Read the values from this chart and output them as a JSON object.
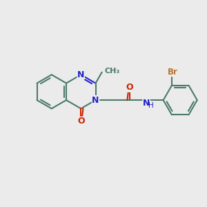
{
  "bg_color": "#ebebeb",
  "bond_color": "#4a7a6a",
  "bond_width": 1.5,
  "font_size_N": 9,
  "font_size_O": 9,
  "font_size_Br": 8.5,
  "font_size_atom": 8,
  "N_color": "#2222cc",
  "O_color": "#cc2200",
  "Br_color": "#b87333",
  "C_color": "#4a7a6a",
  "H_color": "#4a7a6a",
  "xlim": [
    0,
    12
  ],
  "ylim": [
    0,
    10
  ],
  "figsize": [
    3.0,
    3.0
  ],
  "dpi": 100
}
